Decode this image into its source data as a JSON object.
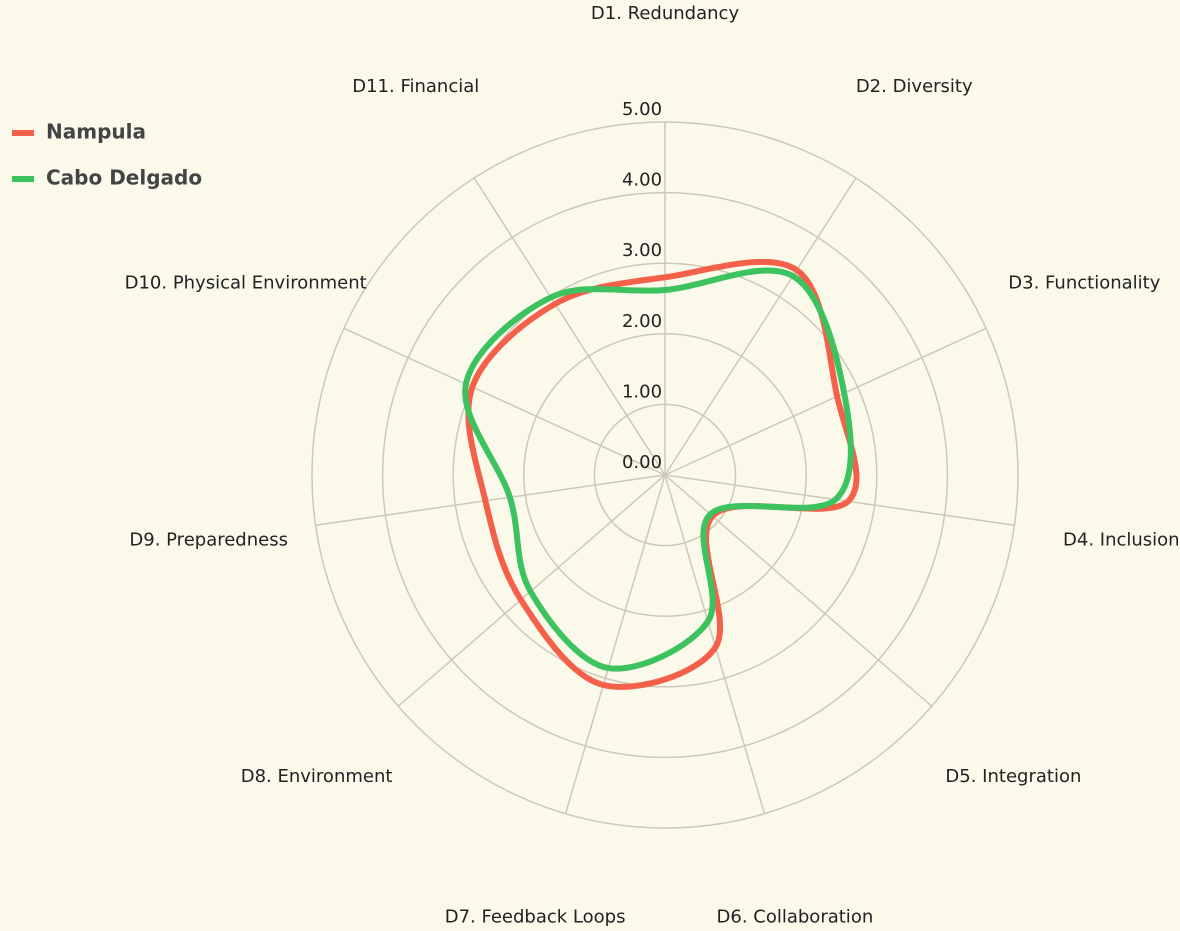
{
  "chart_data": {
    "type": "radar",
    "categories": [
      "D1. Redundancy",
      "D2. Diversity",
      "D3. Functionality",
      "D4. Inclusion",
      "D5. Integration",
      "D6. Collaboration",
      "D7. Feedback Loops",
      "D8. Environment",
      "D9. Preparedness",
      "D10. Physical Environment",
      "D11. Financial"
    ],
    "series": [
      {
        "name": "Nampula",
        "color": "#f4604a",
        "values": [
          2.8,
          3.45,
          2.68,
          2.62,
          0.89,
          2.54,
          3.1,
          2.7,
          2.57,
          3.0,
          2.88
        ]
      },
      {
        "name": "Cabo Delgado",
        "color": "#3cc25e",
        "values": [
          2.62,
          3.35,
          2.79,
          2.44,
          0.85,
          2.16,
          2.85,
          2.52,
          2.22,
          3.1,
          2.99
        ]
      }
    ],
    "rlim": [
      0,
      5
    ],
    "rticks": [
      {
        "value": 0,
        "label": "0.00"
      },
      {
        "value": 1,
        "label": "1.00"
      },
      {
        "value": 2,
        "label": "2.00"
      },
      {
        "value": 3,
        "label": "3.00"
      },
      {
        "value": 4,
        "label": "4.00"
      },
      {
        "value": 5,
        "label": "5.00"
      }
    ],
    "legend": "top-left"
  }
}
